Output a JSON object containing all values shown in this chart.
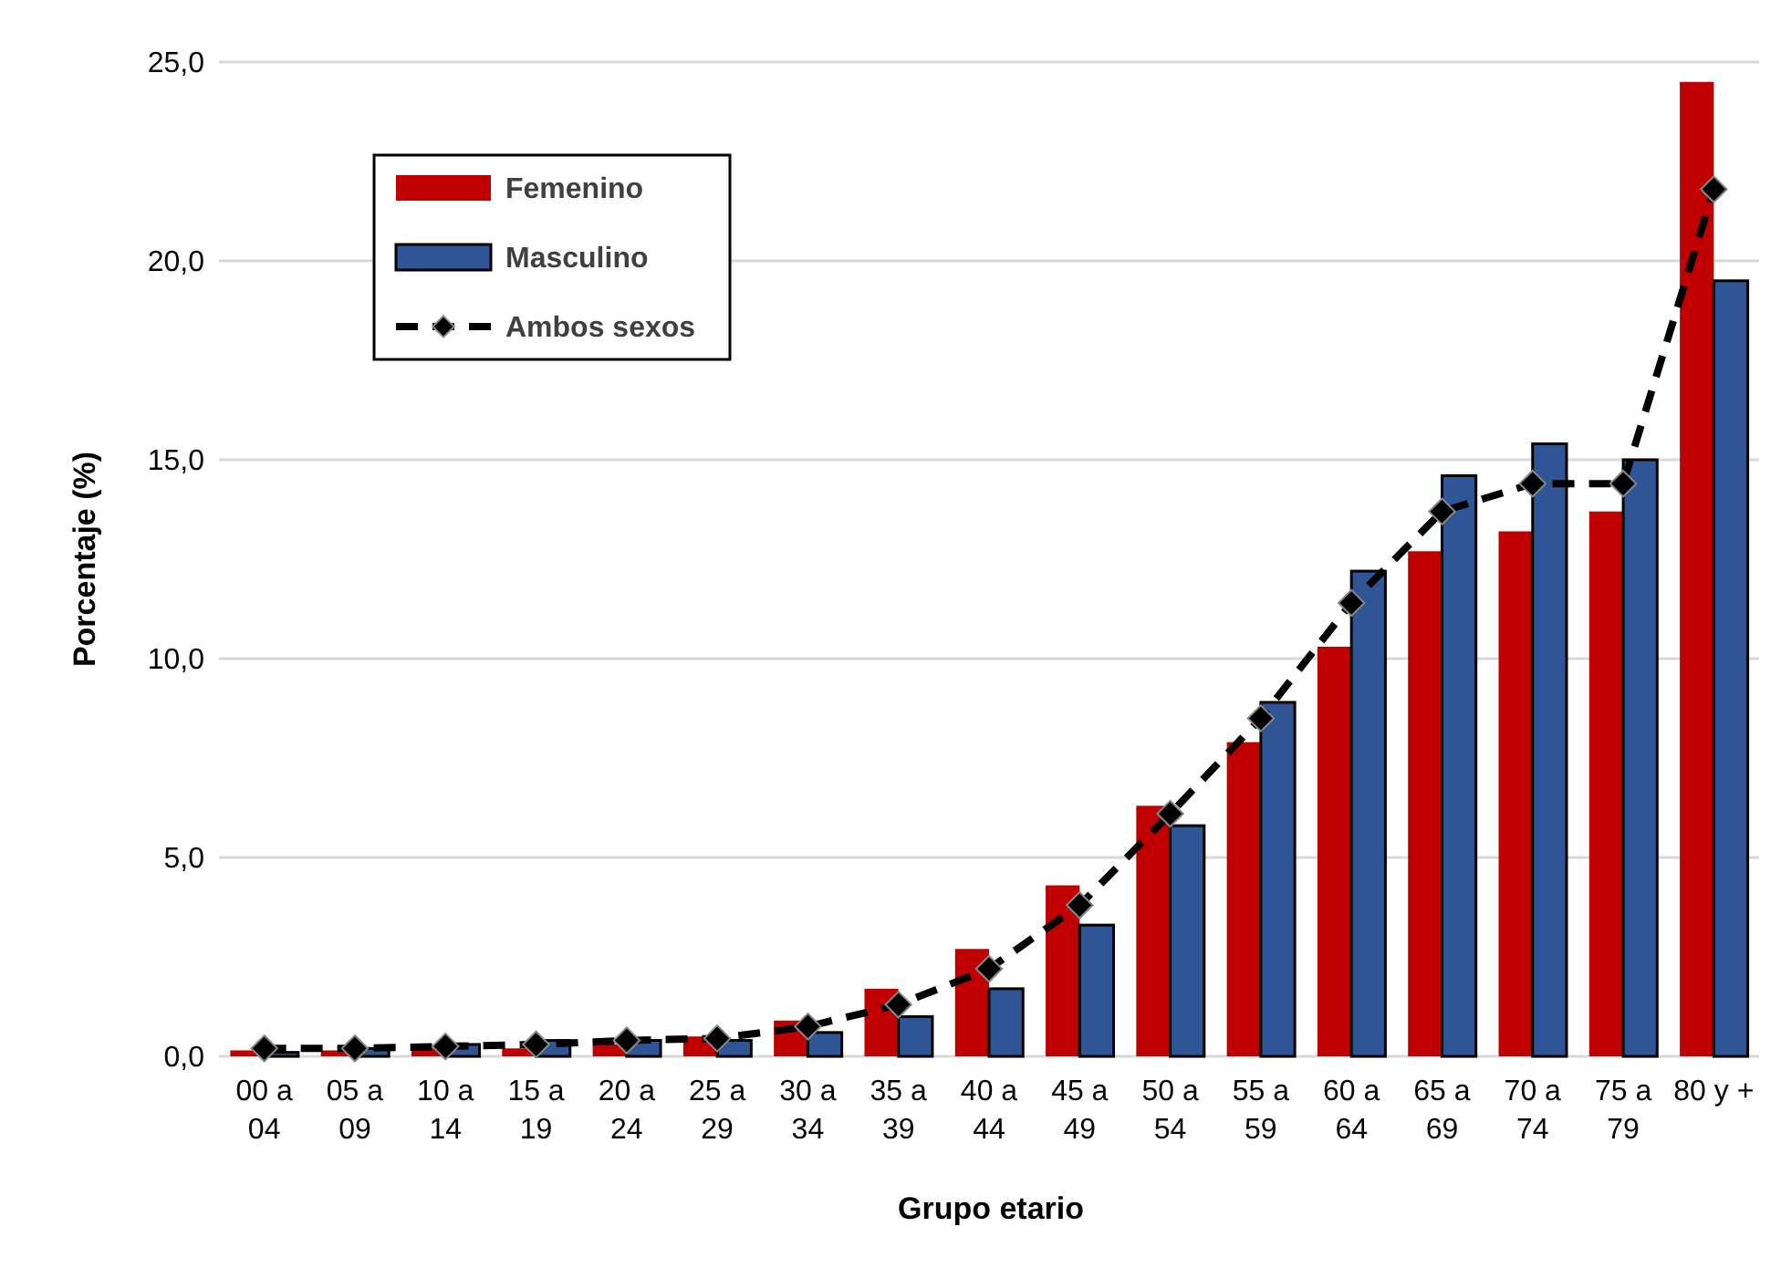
{
  "chart_data": {
    "type": "bar",
    "xlabel": "Grupo etario",
    "ylabel": "Porcentaje (%)",
    "categories": [
      "00 a 04",
      "05 a 09",
      "10 a 14",
      "15 a 19",
      "20 a 24",
      "25 a 29",
      "30 a 34",
      "35 a 39",
      "40 a 44",
      "45 a 49",
      "50 a 54",
      "55 a 59",
      "60 a 64",
      "65 a 69",
      "70 a 74",
      "75 a 79",
      "80 y +"
    ],
    "series": [
      {
        "name": "Femenino",
        "color": "#c00000",
        "values": [
          0.15,
          0.15,
          0.2,
          0.2,
          0.3,
          0.5,
          0.9,
          1.7,
          2.7,
          4.3,
          6.3,
          7.9,
          10.3,
          12.7,
          13.2,
          13.7,
          24.5
        ]
      },
      {
        "name": "Masculino",
        "color": "#2f5597",
        "values": [
          0.1,
          0.2,
          0.3,
          0.4,
          0.4,
          0.4,
          0.6,
          1.0,
          1.7,
          3.3,
          5.8,
          8.9,
          12.2,
          14.6,
          15.4,
          15.0,
          19.5
        ]
      },
      {
        "name": "Ambos sexos",
        "type": "line",
        "color": "#000000",
        "marker": "diamond",
        "line_style": "dashed",
        "values": [
          0.2,
          0.2,
          0.25,
          0.3,
          0.4,
          0.45,
          0.75,
          1.3,
          2.2,
          3.8,
          6.1,
          8.5,
          11.4,
          13.7,
          14.4,
          14.4,
          21.8
        ]
      }
    ],
    "ylim": [
      0,
      25
    ],
    "yticks": [
      {
        "value": 0,
        "label": "0,0"
      },
      {
        "value": 5,
        "label": "5,0"
      },
      {
        "value": 10,
        "label": "10,0"
      },
      {
        "value": 15,
        "label": "15,0"
      },
      {
        "value": 20,
        "label": "20,0"
      },
      {
        "value": 25,
        "label": "25,0"
      }
    ],
    "grid": "y",
    "legend": "top left"
  }
}
